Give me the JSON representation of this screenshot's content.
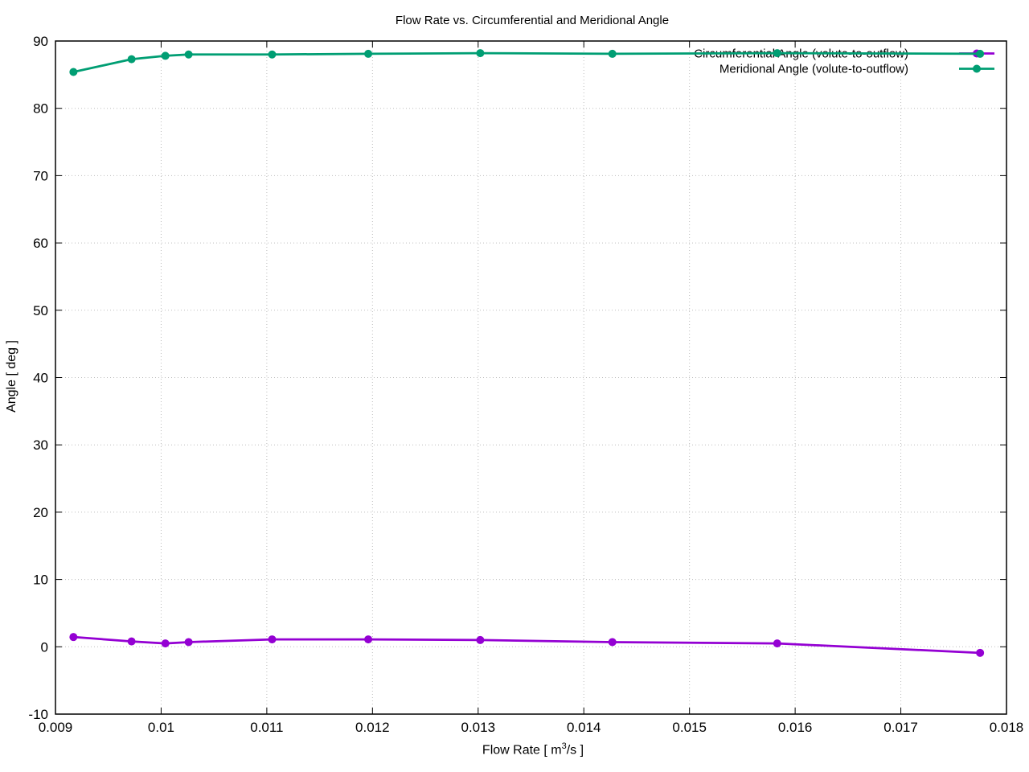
{
  "chart_data": {
    "type": "line",
    "title": "Flow Rate vs. Circumferential and Meridional Angle",
    "xlabel": "Flow Rate [ m^3/s ]",
    "xlabel_prefix": "Flow Rate [ m",
    "xlabel_sup": "3",
    "xlabel_suffix": "/s ]",
    "ylabel": "Angle [ deg ]",
    "xlim": [
      0.009,
      0.018
    ],
    "ylim": [
      -10,
      90
    ],
    "grid": true,
    "grid_style": "dotted",
    "legend_position": "top-right",
    "xticks": [
      {
        "value": 0.009,
        "label": "0.009"
      },
      {
        "value": 0.01,
        "label": "0.01"
      },
      {
        "value": 0.011,
        "label": "0.011"
      },
      {
        "value": 0.012,
        "label": "0.012"
      },
      {
        "value": 0.013,
        "label": "0.013"
      },
      {
        "value": 0.014,
        "label": "0.014"
      },
      {
        "value": 0.015,
        "label": "0.015"
      },
      {
        "value": 0.016,
        "label": "0.016"
      },
      {
        "value": 0.017,
        "label": "0.017"
      },
      {
        "value": 0.018,
        "label": "0.018"
      }
    ],
    "yticks": [
      {
        "value": -10,
        "label": "-10"
      },
      {
        "value": 0,
        "label": "0"
      },
      {
        "value": 10,
        "label": "10"
      },
      {
        "value": 20,
        "label": "20"
      },
      {
        "value": 30,
        "label": "30"
      },
      {
        "value": 40,
        "label": "40"
      },
      {
        "value": 50,
        "label": "50"
      },
      {
        "value": 60,
        "label": "60"
      },
      {
        "value": 70,
        "label": "70"
      },
      {
        "value": 80,
        "label": "80"
      },
      {
        "value": 90,
        "label": "90"
      }
    ],
    "x": [
      0.00917,
      0.00972,
      0.01004,
      0.01026,
      0.01105,
      0.01196,
      0.01302,
      0.01427,
      0.01583,
      0.01775
    ],
    "series": [
      {
        "name": "Circumferential Angle (volute-to-outflow)",
        "color": "#9400d3",
        "marker": "filled-circle",
        "values": [
          1.45,
          0.8,
          0.5,
          0.7,
          1.1,
          1.1,
          1.0,
          0.7,
          0.5,
          -0.9
        ]
      },
      {
        "name": "Meridional Angle (volute-to-outflow)",
        "color": "#009e73",
        "marker": "filled-circle",
        "values": [
          85.4,
          87.3,
          87.8,
          88.0,
          88.0,
          88.1,
          88.2,
          88.1,
          88.2,
          88.1
        ]
      }
    ]
  }
}
